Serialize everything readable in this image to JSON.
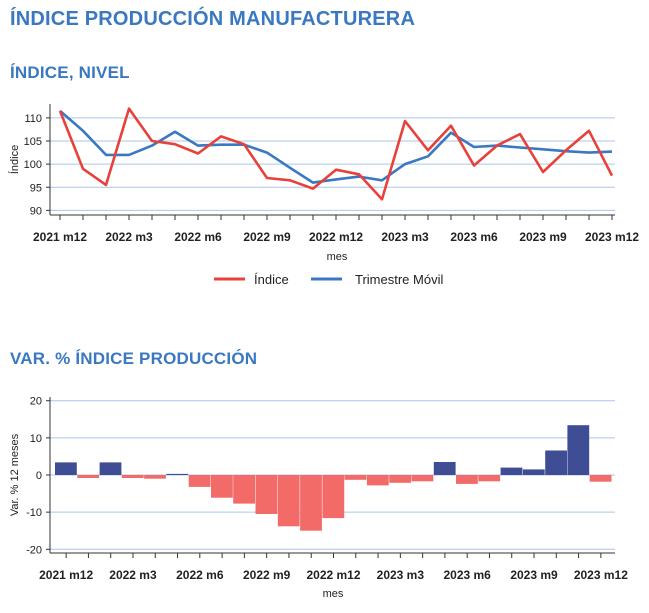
{
  "page": {
    "title": "ÍNDICE PRODUCCIÓN MANUFACTURERA",
    "section1_title": "ÍNDICE, NIVEL",
    "section2_title": "VAR. % ÍNDICE PRODUCCIÓN"
  },
  "colors": {
    "title": "#3a78c2",
    "indice_line": "#e8413a",
    "trimestre_line": "#3a78c2",
    "bar_positive": "#3f4d95",
    "bar_negative": "#f26b68",
    "grid": "#a9c6e8"
  },
  "chart_data": [
    {
      "type": "line",
      "xlabel": "mes",
      "ylabel": "Índice",
      "ylim": [
        89,
        113
      ],
      "yticks": [
        90,
        95,
        100,
        105,
        110
      ],
      "x": [
        "2021 m12",
        "2022 m1",
        "2022 m2",
        "2022 m3",
        "2022 m4",
        "2022 m5",
        "2022 m6",
        "2022 m7",
        "2022 m8",
        "2022 m9",
        "2022 m10",
        "2022 m11",
        "2022 m12",
        "2023 m1",
        "2023 m2",
        "2023 m3",
        "2023 m4",
        "2023 m5",
        "2023 m6",
        "2023 m7",
        "2023 m8",
        "2023 m9",
        "2023 m10",
        "2023 m11",
        "2023 m12"
      ],
      "xtick_labels": [
        "2021 m12",
        "2022 m3",
        "2022 m6",
        "2022 m9",
        "2022 m12",
        "2023 m3",
        "2023 m6",
        "2023 m9",
        "2023 m12"
      ],
      "xtick_index": [
        0,
        3,
        6,
        9,
        12,
        15,
        18,
        21,
        24
      ],
      "grid": true,
      "legend": "bottom",
      "series": [
        {
          "name": "Índice",
          "color": "#e8413a",
          "values": [
            111.5,
            99.0,
            95.5,
            112.0,
            105.0,
            104.3,
            102.3,
            106.0,
            104.3,
            97.0,
            96.5,
            94.7,
            98.8,
            97.8,
            92.4,
            109.3,
            103.0,
            108.3,
            99.7,
            104.0,
            106.5,
            98.3,
            103.0,
            107.2,
            97.5
          ]
        },
        {
          "name": "Trimestre Móvil",
          "color": "#3a78c2",
          "values": [
            111.5,
            107.2,
            102.0,
            102.0,
            104.0,
            107.0,
            104.0,
            104.2,
            104.2,
            102.5,
            99.2,
            96.0,
            96.7,
            97.3,
            96.5,
            100.0,
            101.7,
            106.8,
            103.7,
            104.0,
            103.6,
            103.2,
            102.8,
            102.5,
            102.7
          ]
        }
      ]
    },
    {
      "type": "bar",
      "xlabel": "mes",
      "ylabel": "Var. % 12 meses",
      "ylim": [
        -21,
        21
      ],
      "yticks": [
        -20,
        -10,
        0,
        10,
        20
      ],
      "x": [
        "2021 m12",
        "2022 m1",
        "2022 m2",
        "2022 m3",
        "2022 m4",
        "2022 m5",
        "2022 m6",
        "2022 m7",
        "2022 m8",
        "2022 m9",
        "2022 m10",
        "2022 m11",
        "2022 m12",
        "2023 m1",
        "2023 m2",
        "2023 m3",
        "2023 m4",
        "2023 m5",
        "2023 m6",
        "2023 m7",
        "2023 m8",
        "2023 m9",
        "2023 m10",
        "2023 m11",
        "2023 m12"
      ],
      "xtick_labels": [
        "2021 m12",
        "2022 m3",
        "2022 m6",
        "2022 m9",
        "2022 m12",
        "2023 m3",
        "2023 m6",
        "2023 m9",
        "2023 m12"
      ],
      "xtick_index": [
        0,
        3,
        6,
        9,
        12,
        15,
        18,
        21,
        24
      ],
      "grid": true,
      "values": [
        3.4,
        -0.8,
        3.4,
        -0.8,
        -1.0,
        0.3,
        -3.2,
        -6.1,
        -7.7,
        -10.5,
        -13.8,
        -15.0,
        -11.6,
        -1.3,
        -2.8,
        -2.1,
        -1.7,
        3.5,
        -2.4,
        -1.7,
        2.0,
        1.5,
        6.6,
        13.4,
        -1.8
      ]
    }
  ]
}
